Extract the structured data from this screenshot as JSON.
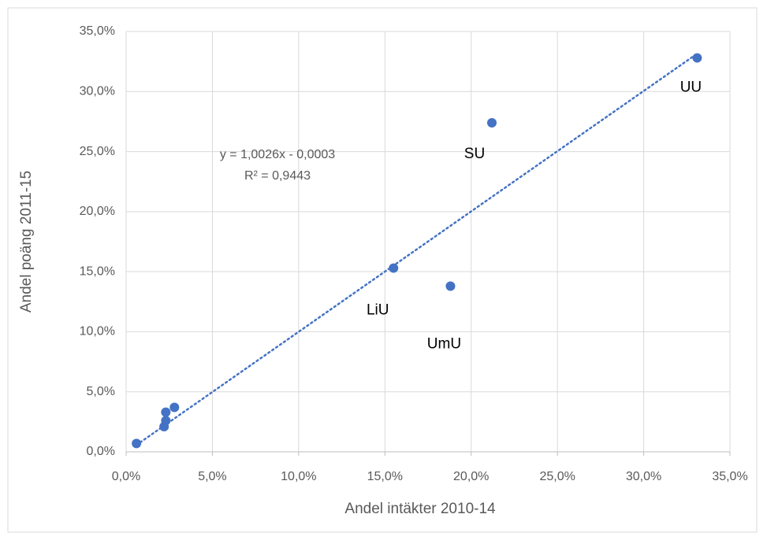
{
  "chart_data": {
    "type": "scatter",
    "x_label": "Andel  intäkter 2010-14",
    "y_label": "Andel poäng 2011-15",
    "series": [
      {
        "color": "#4472c4",
        "x": [
          0.6,
          2.2,
          2.3,
          2.3,
          2.8,
          15.5,
          18.8,
          21.2,
          33.1
        ],
        "values": [
          0.7,
          2.1,
          2.6,
          3.3,
          3.7,
          15.3,
          13.8,
          27.4,
          32.8
        ],
        "labels": [
          null,
          null,
          null,
          null,
          null,
          "LiU",
          "UmU",
          "SU",
          "UU"
        ]
      }
    ],
    "trendline": {
      "slope": 1.0026,
      "intercept": -0.03,
      "equation": "y = 1,0026x - 0,0003",
      "r2": "R² = 0,9443"
    },
    "xlim": [
      0,
      35
    ],
    "ylim": [
      0,
      35
    ],
    "xticks": [
      {
        "value": 0,
        "label": "0,0%"
      },
      {
        "value": 5,
        "label": "5,0%"
      },
      {
        "value": 10,
        "label": "10,0%"
      },
      {
        "value": 15,
        "label": "15,0%"
      },
      {
        "value": 20,
        "label": "20,0%"
      },
      {
        "value": 25,
        "label": "25,0%"
      },
      {
        "value": 30,
        "label": "30,0%"
      },
      {
        "value": 35,
        "label": "35,0%"
      }
    ],
    "yticks": [
      {
        "value": 0,
        "label": "0,0%"
      },
      {
        "value": 5,
        "label": "5,0%"
      },
      {
        "value": 10,
        "label": "10,0%"
      },
      {
        "value": 15,
        "label": "15,0%"
      },
      {
        "value": 20,
        "label": "20,0%"
      },
      {
        "value": 25,
        "label": "25,0%"
      },
      {
        "value": 30,
        "label": "30,0%"
      },
      {
        "value": 35,
        "label": "35,0%"
      }
    ],
    "grid": true
  }
}
